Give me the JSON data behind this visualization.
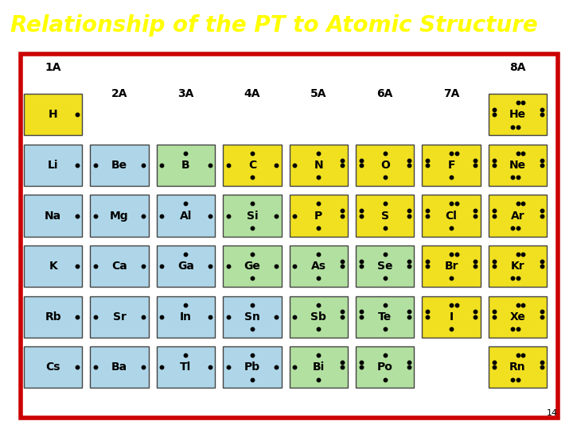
{
  "title": "Relationship of the PT to Atomic Structure",
  "title_bg": "#cc0000",
  "title_fg": "#ffff00",
  "title_fontsize": 20,
  "border_color": "#cc0000",
  "bg_color": "#ffffff",
  "page_number": "14",
  "colors": {
    "yellow": "#f0e020",
    "light_blue": "#aed6e8",
    "light_green": "#b2e0a0",
    "white": "#ffffff"
  },
  "elements": [
    {
      "symbol": "H",
      "col": 0,
      "row": 1,
      "color": "yellow",
      "dots": 1
    },
    {
      "symbol": "He",
      "col": 7,
      "row": 1,
      "color": "yellow",
      "dots": 8
    },
    {
      "symbol": "Li",
      "col": 0,
      "row": 2,
      "color": "light_blue",
      "dots": 1
    },
    {
      "symbol": "Be",
      "col": 1,
      "row": 2,
      "color": "light_blue",
      "dots": 2
    },
    {
      "symbol": "B",
      "col": 2,
      "row": 2,
      "color": "light_green",
      "dots": 3
    },
    {
      "symbol": "C",
      "col": 3,
      "row": 2,
      "color": "yellow",
      "dots": 4
    },
    {
      "symbol": "N",
      "col": 4,
      "row": 2,
      "color": "yellow",
      "dots": 5
    },
    {
      "symbol": "O",
      "col": 5,
      "row": 2,
      "color": "yellow",
      "dots": 6
    },
    {
      "symbol": "F",
      "col": 6,
      "row": 2,
      "color": "yellow",
      "dots": 7
    },
    {
      "symbol": "Ne",
      "col": 7,
      "row": 2,
      "color": "yellow",
      "dots": 8
    },
    {
      "symbol": "Na",
      "col": 0,
      "row": 3,
      "color": "light_blue",
      "dots": 1
    },
    {
      "symbol": "Mg",
      "col": 1,
      "row": 3,
      "color": "light_blue",
      "dots": 2
    },
    {
      "symbol": "Al",
      "col": 2,
      "row": 3,
      "color": "light_blue",
      "dots": 3
    },
    {
      "symbol": "Si",
      "col": 3,
      "row": 3,
      "color": "light_green",
      "dots": 4
    },
    {
      "symbol": "P",
      "col": 4,
      "row": 3,
      "color": "yellow",
      "dots": 5
    },
    {
      "symbol": "S",
      "col": 5,
      "row": 3,
      "color": "yellow",
      "dots": 6
    },
    {
      "symbol": "Cl",
      "col": 6,
      "row": 3,
      "color": "yellow",
      "dots": 7
    },
    {
      "symbol": "Ar",
      "col": 7,
      "row": 3,
      "color": "yellow",
      "dots": 8
    },
    {
      "symbol": "K",
      "col": 0,
      "row": 4,
      "color": "light_blue",
      "dots": 1
    },
    {
      "symbol": "Ca",
      "col": 1,
      "row": 4,
      "color": "light_blue",
      "dots": 2
    },
    {
      "symbol": "Ga",
      "col": 2,
      "row": 4,
      "color": "light_blue",
      "dots": 3
    },
    {
      "symbol": "Ge",
      "col": 3,
      "row": 4,
      "color": "light_green",
      "dots": 4
    },
    {
      "symbol": "As",
      "col": 4,
      "row": 4,
      "color": "light_green",
      "dots": 5
    },
    {
      "symbol": "Se",
      "col": 5,
      "row": 4,
      "color": "light_green",
      "dots": 6
    },
    {
      "symbol": "Br",
      "col": 6,
      "row": 4,
      "color": "yellow",
      "dots": 7
    },
    {
      "symbol": "Kr",
      "col": 7,
      "row": 4,
      "color": "yellow",
      "dots": 8
    },
    {
      "symbol": "Rb",
      "col": 0,
      "row": 5,
      "color": "light_blue",
      "dots": 1
    },
    {
      "symbol": "Sr",
      "col": 1,
      "row": 5,
      "color": "light_blue",
      "dots": 2
    },
    {
      "symbol": "In",
      "col": 2,
      "row": 5,
      "color": "light_blue",
      "dots": 3
    },
    {
      "symbol": "Sn",
      "col": 3,
      "row": 5,
      "color": "light_blue",
      "dots": 4
    },
    {
      "symbol": "Sb",
      "col": 4,
      "row": 5,
      "color": "light_green",
      "dots": 5
    },
    {
      "symbol": "Te",
      "col": 5,
      "row": 5,
      "color": "light_green",
      "dots": 6
    },
    {
      "symbol": "I",
      "col": 6,
      "row": 5,
      "color": "yellow",
      "dots": 7
    },
    {
      "symbol": "Xe",
      "col": 7,
      "row": 5,
      "color": "yellow",
      "dots": 8
    },
    {
      "symbol": "Cs",
      "col": 0,
      "row": 6,
      "color": "light_blue",
      "dots": 1
    },
    {
      "symbol": "Ba",
      "col": 1,
      "row": 6,
      "color": "light_blue",
      "dots": 2
    },
    {
      "symbol": "Tl",
      "col": 2,
      "row": 6,
      "color": "light_blue",
      "dots": 3
    },
    {
      "symbol": "Pb",
      "col": 3,
      "row": 6,
      "color": "light_blue",
      "dots": 4
    },
    {
      "symbol": "Bi",
      "col": 4,
      "row": 6,
      "color": "light_green",
      "dots": 5
    },
    {
      "symbol": "Po",
      "col": 5,
      "row": 6,
      "color": "light_green",
      "dots": 6
    },
    {
      "symbol": "Rn",
      "col": 7,
      "row": 6,
      "color": "yellow",
      "dots": 8
    }
  ]
}
